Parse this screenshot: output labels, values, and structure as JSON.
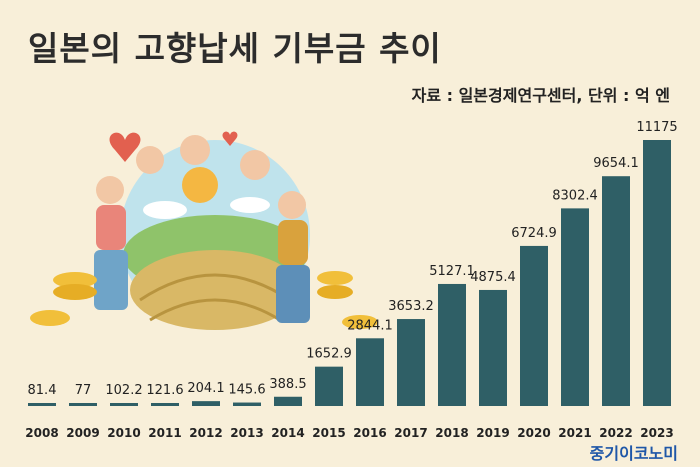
{
  "title": "일본의 고향납세 기부금 추이",
  "source": "자료 : 일본경제연구센터, 단위 : 억 엔",
  "brand": "중기이코노미",
  "colors": {
    "background": "#f8efd9",
    "bar": "#2f5f66",
    "text": "#222222",
    "brand": "#1f57a8"
  },
  "chart_data": {
    "type": "bar",
    "title": "일본의 고향납세 기부금 추이",
    "unit": "억 엔",
    "categories": [
      "2008",
      "2009",
      "2010",
      "2011",
      "2012",
      "2013",
      "2014",
      "2015",
      "2016",
      "2017",
      "2018",
      "2019",
      "2020",
      "2021",
      "2022",
      "2023"
    ],
    "values": [
      81.4,
      77,
      102.2,
      121.6,
      204.1,
      145.6,
      388.5,
      1652.9,
      2844.1,
      3653.2,
      5127.1,
      4875.4,
      6724.9,
      8302.4,
      9654.1,
      11175
    ],
    "value_labels": [
      "81.4",
      "77",
      "102.2",
      "121.6",
      "204.1",
      "145.6",
      "388.5",
      "1652.9",
      "2844.1",
      "3653.2",
      "5127.1",
      "4875.4",
      "6724.9",
      "8302.4",
      "9654.1",
      "11175"
    ],
    "ylim": [
      0,
      11175
    ],
    "grid": false,
    "legend": "none"
  }
}
